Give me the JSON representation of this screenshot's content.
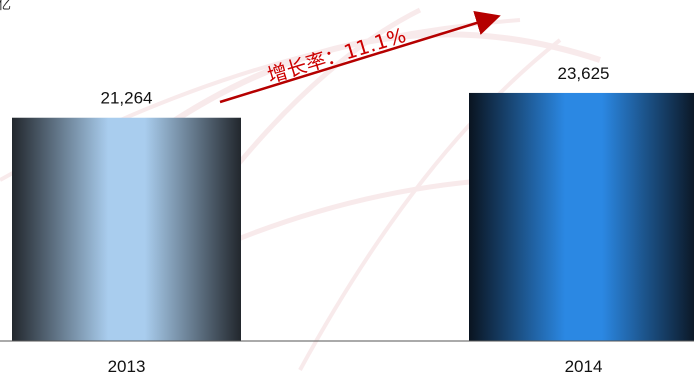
{
  "corner_text": "亿",
  "growth": {
    "label": "增长率：11.1%"
  },
  "colors": {
    "bar_2013_light": "#a9cdee",
    "bar_2013_dark": "#22272d",
    "bar_2014_light": "#2b88e3",
    "bar_2014_dark": "#0a1420",
    "arrow": "#b50000",
    "axis": "#555555",
    "watermark": "#c23a4a"
  },
  "chart_data": {
    "type": "bar",
    "categories": [
      "2013",
      "2014"
    ],
    "values": [
      21264,
      23625
    ],
    "value_labels": [
      "21,264",
      "23,625"
    ],
    "title": "",
    "xlabel": "",
    "ylabel": "",
    "ylim": [
      0,
      32000
    ],
    "grid": false,
    "legend": "none"
  }
}
